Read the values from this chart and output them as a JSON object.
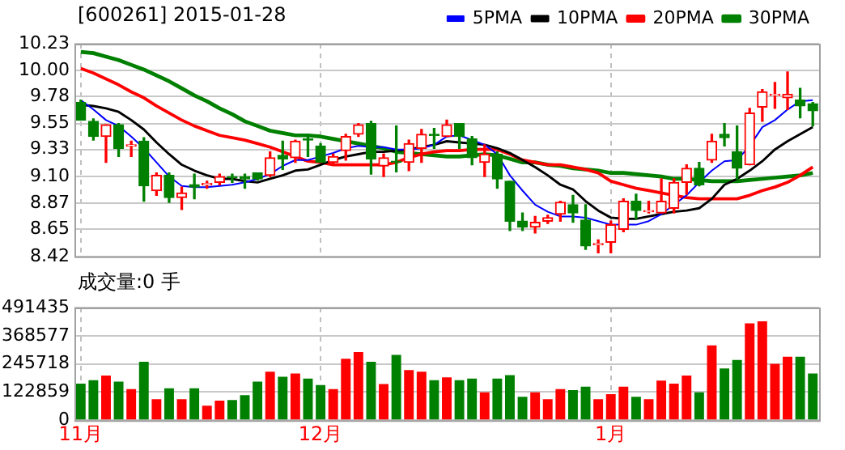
{
  "chart_data": [
    {
      "type": "candlestick",
      "title": "[600261] 2015-01-28",
      "categories": [
        null,
        null,
        null,
        null,
        null,
        null,
        null,
        null,
        null,
        null,
        null,
        null,
        null,
        null,
        null,
        null,
        null,
        null,
        null,
        null,
        null,
        null,
        null,
        null,
        null,
        null,
        null,
        null,
        null,
        null,
        null,
        null,
        null,
        null,
        null,
        null,
        null,
        null,
        null,
        null,
        null,
        null,
        null,
        null,
        null,
        null,
        null,
        null,
        null,
        null,
        null,
        null,
        null,
        null,
        null,
        null,
        null,
        null,
        null
      ],
      "ohlc": [
        [
          9.73,
          9.75,
          9.58,
          9.58
        ],
        [
          9.57,
          9.59,
          9.41,
          9.44
        ],
        [
          9.44,
          9.54,
          9.22,
          9.54
        ],
        [
          9.54,
          9.55,
          9.27,
          9.34
        ],
        [
          9.36,
          9.4,
          9.27,
          9.37
        ],
        [
          9.4,
          9.43,
          8.89,
          9.02
        ],
        [
          8.98,
          9.13,
          8.94,
          9.11
        ],
        [
          9.11,
          9.13,
          8.88,
          8.92
        ],
        [
          8.92,
          9.01,
          8.82,
          8.96
        ],
        [
          9.03,
          9.12,
          8.91,
          9.01
        ],
        [
          9.03,
          9.06,
          9,
          9.04
        ],
        [
          9.05,
          9.12,
          9.03,
          9.1
        ],
        [
          9.1,
          9.12,
          9.05,
          9.09
        ],
        [
          9.1,
          9.12,
          9,
          9.08
        ],
        [
          9.13,
          9.13,
          9.07,
          9.08
        ],
        [
          9.11,
          9.31,
          9.1,
          9.26
        ],
        [
          9.28,
          9.4,
          9.16,
          9.25
        ],
        [
          9.26,
          9.41,
          9.22,
          9.4
        ],
        [
          9.42,
          9.46,
          9.27,
          9.41
        ],
        [
          9.36,
          9.38,
          9.22,
          9.22
        ],
        [
          9.22,
          9.29,
          9.2,
          9.27
        ],
        [
          9.32,
          9.46,
          9.24,
          9.44
        ],
        [
          9.46,
          9.55,
          9.44,
          9.54
        ],
        [
          9.55,
          9.57,
          9.12,
          9.25
        ],
        [
          9.19,
          9.29,
          9.1,
          9.26
        ],
        [
          9.23,
          9.53,
          9.14,
          9.22
        ],
        [
          9.22,
          9.41,
          9.15,
          9.38
        ],
        [
          9.34,
          9.5,
          9.22,
          9.46
        ],
        [
          9.46,
          9.51,
          9.34,
          9.45
        ],
        [
          9.44,
          9.58,
          9.44,
          9.54
        ],
        [
          9.55,
          9.55,
          9.34,
          9.44
        ],
        [
          9.42,
          9.44,
          9.2,
          9.26
        ],
        [
          9.22,
          9.37,
          9.1,
          9.29
        ],
        [
          9.29,
          9.31,
          9,
          9.08
        ],
        [
          9.06,
          9.06,
          8.64,
          8.72
        ],
        [
          8.72,
          8.79,
          8.64,
          8.67
        ],
        [
          8.67,
          8.76,
          8.62,
          8.71
        ],
        [
          8.72,
          8.77,
          8.7,
          8.75
        ],
        [
          8.78,
          8.89,
          8.72,
          8.88
        ],
        [
          8.86,
          8.94,
          8.71,
          8.79
        ],
        [
          8.73,
          8.86,
          8.48,
          8.51
        ],
        [
          8.52,
          8.56,
          8.45,
          8.53
        ],
        [
          8.54,
          8.72,
          8.45,
          8.69
        ],
        [
          8.65,
          8.91,
          8.63,
          8.89
        ],
        [
          8.89,
          8.95,
          8.74,
          8.81
        ],
        [
          8.8,
          8.89,
          8.79,
          8.81
        ],
        [
          8.79,
          9.08,
          8.79,
          8.89
        ],
        [
          8.83,
          9.08,
          8.79,
          9.05
        ],
        [
          9.05,
          9.2,
          8.95,
          9.17
        ],
        [
          9.17,
          9.22,
          9.02,
          9.03
        ],
        [
          9.24,
          9.46,
          9.22,
          9.4
        ],
        [
          9.46,
          9.55,
          9.36,
          9.43
        ],
        [
          9.31,
          9.53,
          9.08,
          9.17
        ],
        [
          9.2,
          9.68,
          9.2,
          9.64
        ],
        [
          9.69,
          9.84,
          9.57,
          9.82
        ],
        [
          9.79,
          9.9,
          9.68,
          9.8
        ],
        [
          9.77,
          9.99,
          9.67,
          9.8
        ],
        [
          9.75,
          9.85,
          9.6,
          9.7
        ],
        [
          9.72,
          9.73,
          9.53,
          9.66
        ]
      ],
      "colors": [
        "#008000",
        "#008000",
        "#ff0000",
        "#008000",
        "#ff0000",
        "#008000",
        "#ff0000",
        "#008000",
        "#ff0000",
        "#008000",
        "#ff0000",
        "#ff0000",
        "#008000",
        "#008000",
        "#008000",
        "#ff0000",
        "#008000",
        "#ff0000",
        "#008000",
        "#008000",
        "#ff0000",
        "#ff0000",
        "#ff0000",
        "#008000",
        "#ff0000",
        "#008000",
        "#ff0000",
        "#ff0000",
        "#008000",
        "#ff0000",
        "#008000",
        "#008000",
        "#ff0000",
        "#008000",
        "#008000",
        "#008000",
        "#ff0000",
        "#ff0000",
        "#ff0000",
        "#008000",
        "#008000",
        "#ff0000",
        "#ff0000",
        "#ff0000",
        "#008000",
        "#ff0000",
        "#ff0000",
        "#ff0000",
        "#ff0000",
        "#008000",
        "#ff0000",
        "#008000",
        "#008000",
        "#ff0000",
        "#ff0000",
        "#ff0000",
        "#ff0000",
        "#008000",
        "#008000"
      ],
      "series": [
        {
          "type": "line",
          "name": "5PMA",
          "color": "#0000ff",
          "values": [
            9.75,
            9.67,
            9.58,
            9.53,
            9.44,
            9.34,
            9.22,
            9.1,
            9.02,
            9.01,
            9.01,
            9.02,
            9.03,
            9.05,
            9.08,
            9.12,
            9.19,
            9.24,
            9.24,
            9.27,
            9.3,
            9.34,
            9.36,
            9.35,
            9.35,
            9.33,
            9.33,
            9.34,
            9.37,
            9.44,
            9.45,
            9.41,
            9.37,
            9.29,
            9.11,
            8.98,
            8.86,
            8.8,
            8.76,
            8.76,
            8.75,
            8.72,
            8.69,
            8.69,
            8.69,
            8.72,
            8.78,
            8.86,
            8.94,
            9.05,
            9.15,
            9.23,
            9.24,
            9.36,
            9.52,
            9.58,
            9.67,
            9.74,
            9.75
          ]
        },
        {
          "type": "line",
          "name": "10PMA",
          "color": "#000000",
          "values": [
            9.71,
            9.7,
            9.68,
            9.65,
            9.58,
            9.5,
            9.39,
            9.29,
            9.2,
            9.15,
            9.11,
            9.08,
            9.08,
            9.06,
            9.05,
            9.08,
            9.11,
            9.15,
            9.16,
            9.2,
            9.24,
            9.27,
            9.29,
            9.31,
            9.31,
            9.32,
            9.33,
            9.35,
            9.37,
            9.4,
            9.39,
            9.38,
            9.37,
            9.34,
            9.3,
            9.24,
            9.18,
            9.11,
            9.03,
            8.99,
            8.89,
            8.81,
            8.75,
            8.74,
            8.74,
            8.76,
            8.78,
            8.8,
            8.81,
            8.83,
            8.91,
            9.03,
            9.08,
            9.15,
            9.23,
            9.33,
            9.4,
            9.46,
            9.52
          ]
        },
        {
          "type": "line",
          "name": "20PMA",
          "color": "#ff0000",
          "values": [
            10.02,
            9.98,
            9.93,
            9.88,
            9.82,
            9.77,
            9.7,
            9.64,
            9.58,
            9.53,
            9.49,
            9.45,
            9.43,
            9.41,
            9.38,
            9.35,
            9.31,
            9.27,
            9.23,
            9.22,
            9.2,
            9.2,
            9.2,
            9.2,
            9.2,
            9.22,
            9.26,
            9.29,
            9.31,
            9.32,
            9.32,
            9.33,
            9.33,
            9.33,
            9.29,
            9.24,
            9.22,
            9.2,
            9.2,
            9.18,
            9.16,
            9.13,
            9.06,
            9.03,
            9,
            8.98,
            8.96,
            8.94,
            8.92,
            8.91,
            8.91,
            8.91,
            8.91,
            8.94,
            8.98,
            9.01,
            9.05,
            9.11,
            9.18
          ]
        },
        {
          "type": "line",
          "name": "30PMA",
          "color": "#008000",
          "values": [
            10.16,
            10.15,
            10.12,
            10.09,
            10.05,
            10.01,
            9.96,
            9.91,
            9.85,
            9.79,
            9.74,
            9.68,
            9.63,
            9.57,
            9.53,
            9.49,
            9.47,
            9.45,
            9.45,
            9.44,
            9.42,
            9.4,
            9.38,
            9.36,
            9.34,
            9.31,
            9.3,
            9.29,
            9.28,
            9.27,
            9.27,
            9.28,
            9.29,
            9.28,
            9.25,
            9.22,
            9.22,
            9.2,
            9.19,
            9.17,
            9.16,
            9.15,
            9.13,
            9.13,
            9.12,
            9.11,
            9.1,
            9.08,
            9.08,
            9.07,
            9.06,
            9.06,
            9.06,
            9.07,
            9.08,
            9.09,
            9.1,
            9.11,
            9.13
          ]
        }
      ],
      "ylim": [
        8.42,
        10.23
      ],
      "yticks": [
        8.42,
        8.65,
        8.87,
        {
          "value": 9.1,
          "label": "9.10"
        },
        9.33,
        9.55,
        9.78,
        {
          "value": 10,
          "label": "10.00"
        },
        10.23
      ],
      "grid": true,
      "legend": "top right",
      "tick_labels": "y"
    },
    {
      "type": "bar",
      "title": "成交量:0 手",
      "categories": [
        "11月",
        null,
        null,
        null,
        null,
        null,
        null,
        null,
        null,
        null,
        null,
        null,
        null,
        null,
        null,
        null,
        null,
        null,
        null,
        "12月",
        null,
        null,
        null,
        null,
        null,
        null,
        null,
        null,
        null,
        null,
        null,
        null,
        null,
        null,
        null,
        null,
        null,
        null,
        null,
        null,
        null,
        null,
        "1月",
        null,
        null,
        null,
        null,
        null,
        null,
        null,
        null,
        null,
        null,
        null,
        null,
        null,
        null,
        null,
        null
      ],
      "values": [
        160000,
        175000,
        195000,
        168000,
        136000,
        255000,
        92000,
        139000,
        92000,
        139000,
        63000,
        85000,
        88000,
        109000,
        168000,
        212000,
        190000,
        204000,
        182000,
        153000,
        136000,
        268000,
        297000,
        255000,
        158000,
        285000,
        219000,
        212000,
        175000,
        187000,
        175000,
        182000,
        122000,
        182000,
        197000,
        102000,
        122000,
        92000,
        136000,
        131000,
        146000,
        92000,
        114000,
        146000,
        102000,
        92000,
        173000,
        160000,
        195000,
        122000,
        326000,
        226000,
        263000,
        423000,
        431000,
        246000,
        277000,
        277000,
        204000
      ],
      "colors": [
        "#008000",
        "#008000",
        "#ff0000",
        "#008000",
        "#ff0000",
        "#008000",
        "#ff0000",
        "#008000",
        "#ff0000",
        "#008000",
        "#ff0000",
        "#ff0000",
        "#008000",
        "#008000",
        "#008000",
        "#ff0000",
        "#008000",
        "#ff0000",
        "#008000",
        "#008000",
        "#ff0000",
        "#ff0000",
        "#ff0000",
        "#008000",
        "#ff0000",
        "#008000",
        "#ff0000",
        "#ff0000",
        "#008000",
        "#ff0000",
        "#008000",
        "#008000",
        "#ff0000",
        "#008000",
        "#008000",
        "#008000",
        "#ff0000",
        "#ff0000",
        "#ff0000",
        "#008000",
        "#008000",
        "#ff0000",
        "#ff0000",
        "#ff0000",
        "#008000",
        "#ff0000",
        "#ff0000",
        "#ff0000",
        "#ff0000",
        "#008000",
        "#ff0000",
        "#008000",
        "#008000",
        "#ff0000",
        "#ff0000",
        "#ff0000",
        "#ff0000",
        "#008000",
        "#008000"
      ],
      "ylim": [
        0,
        491435
      ],
      "yticks": [
        0,
        122859,
        245718,
        368577,
        491435
      ],
      "grid": true
    }
  ]
}
